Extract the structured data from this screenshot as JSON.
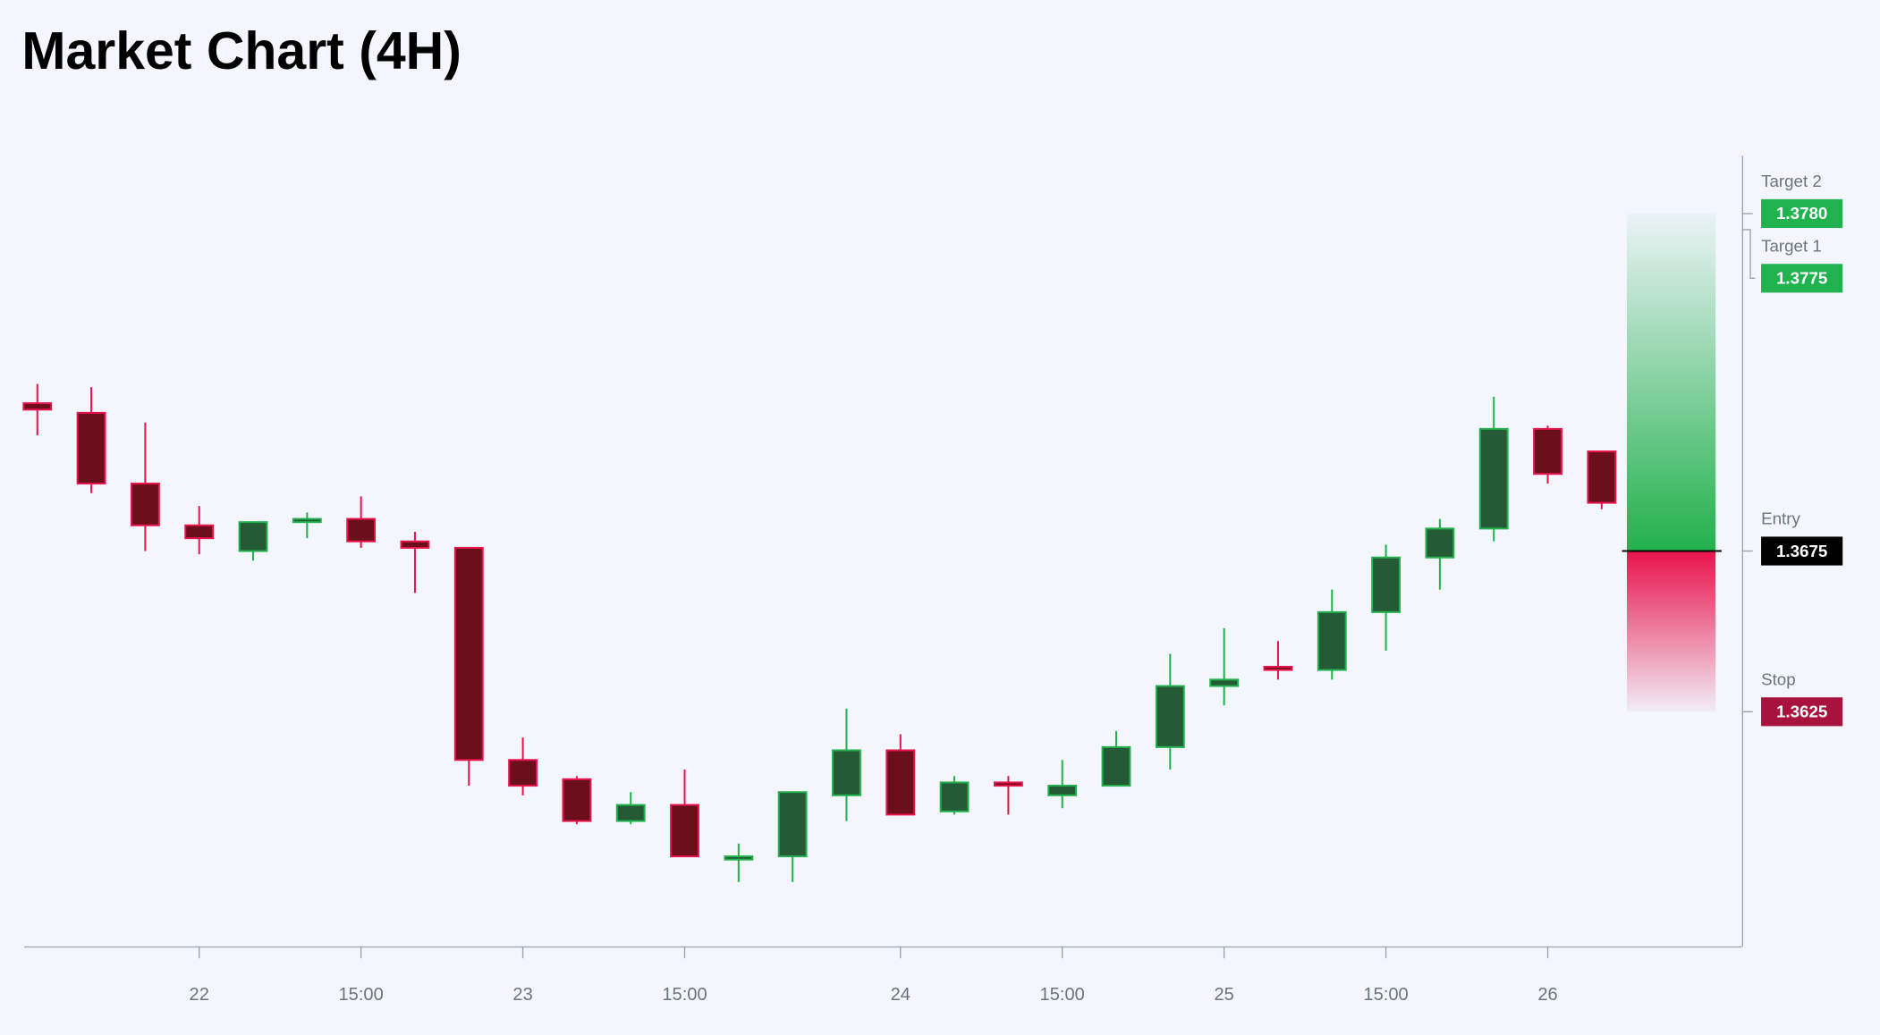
{
  "chart_data": {
    "type": "candlestick",
    "title": "Market Chart (4H)",
    "categories": [
      null,
      null,
      null,
      "22",
      null,
      null,
      "15:00",
      null,
      null,
      "23",
      null,
      null,
      "15:00",
      null,
      null,
      null,
      "24",
      null,
      null,
      "15:00",
      null,
      null,
      "25",
      null,
      null,
      "15:00",
      null,
      null,
      "26",
      null
    ],
    "open": [
      1.3721,
      1.3718,
      1.3696,
      1.3683,
      1.3675,
      1.3684,
      1.3685,
      1.3678,
      1.3676,
      1.361,
      1.3604,
      1.3591,
      1.3596,
      1.3579,
      1.358,
      1.3599,
      1.3613,
      1.3594,
      1.3603,
      1.3599,
      1.3602,
      1.3614,
      1.3633,
      1.3639,
      1.3638,
      1.3656,
      1.3673,
      1.3682,
      1.3713,
      1.3706
    ],
    "high": [
      1.3727,
      1.3726,
      1.3715,
      1.3689,
      1.3684,
      1.3687,
      1.3692,
      1.3681,
      1.3676,
      1.3617,
      1.3605,
      1.36,
      1.3607,
      1.3584,
      1.36,
      1.3626,
      1.3618,
      1.3605,
      1.3605,
      1.361,
      1.3619,
      1.3643,
      1.3651,
      1.3647,
      1.3663,
      1.3677,
      1.3685,
      1.3723,
      1.3714,
      1.3706
    ],
    "low": [
      1.3711,
      1.3693,
      1.3675,
      1.3674,
      1.3672,
      1.3679,
      1.3676,
      1.3662,
      1.3602,
      1.3599,
      1.359,
      1.359,
      1.358,
      1.3572,
      1.3572,
      1.3591,
      1.3593,
      1.3593,
      1.3593,
      1.3595,
      1.3602,
      1.3607,
      1.3627,
      1.3635,
      1.3635,
      1.3644,
      1.3663,
      1.3678,
      1.3696,
      1.3688
    ],
    "close": [
      1.3719,
      1.3696,
      1.3683,
      1.3679,
      1.3684,
      1.3685,
      1.3678,
      1.3676,
      1.361,
      1.3602,
      1.3591,
      1.3596,
      1.358,
      1.358,
      1.36,
      1.3613,
      1.3593,
      1.3603,
      1.3602,
      1.3602,
      1.3614,
      1.3633,
      1.3635,
      1.3638,
      1.3656,
      1.3673,
      1.3682,
      1.3713,
      1.3699,
      1.369
    ],
    "up_color": {
      "body": "#245a36",
      "border": "#22b14c"
    },
    "down_color": {
      "body": "#6a0f1b",
      "border": "#e8134b"
    },
    "ylim": [
      1.3552,
      1.3798
    ],
    "levels": {
      "names": [
        "Target 2",
        "Target 1",
        "Entry",
        "Stop"
      ],
      "values": [
        1.378,
        1.3775,
        1.3675,
        1.3625
      ],
      "value_labels": [
        "1.3780",
        "1.3775",
        "1.3675",
        "1.3625"
      ],
      "colors": [
        "#1fb24f",
        "#1fb24f",
        "#000000",
        "#a8123e"
      ]
    }
  }
}
